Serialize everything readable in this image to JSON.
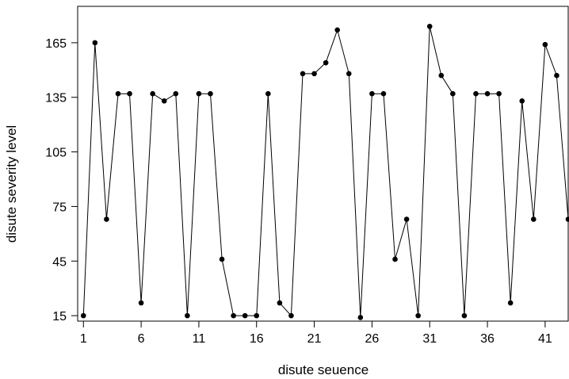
{
  "chart_data": {
    "type": "line",
    "title": "",
    "xlabel": "disute seuence",
    "ylabel": "disute severity level",
    "xlim": [
      0.5,
      43
    ],
    "ylim": [
      12,
      185
    ],
    "x_ticks": [
      1,
      6,
      11,
      16,
      21,
      26,
      31,
      36,
      41
    ],
    "y_ticks": [
      15,
      45,
      75,
      105,
      135,
      165
    ],
    "grid": false,
    "legend": "none",
    "series": [
      {
        "x": [
          1,
          2,
          3,
          4,
          5,
          6,
          7,
          8,
          9,
          10,
          11,
          12,
          13,
          14,
          15,
          16,
          17,
          18,
          19,
          20,
          21,
          22,
          23,
          24,
          25,
          26,
          27,
          28,
          29,
          30,
          31,
          32,
          33,
          34,
          35,
          36,
          37,
          38,
          39,
          40,
          41,
          42,
          43
        ],
        "values": [
          15,
          165,
          68,
          137,
          137,
          22,
          137,
          133,
          137,
          15,
          137,
          137,
          46,
          15,
          15,
          15,
          137,
          22,
          15,
          148,
          148,
          154,
          172,
          148,
          14,
          137,
          137,
          46,
          68,
          15,
          174,
          147,
          137,
          15,
          137,
          137,
          137,
          22,
          133,
          68,
          164,
          147,
          68
        ]
      }
    ],
    "colors": {
      "line": "#000000",
      "marker": "#000000",
      "axis": "#000000"
    }
  }
}
